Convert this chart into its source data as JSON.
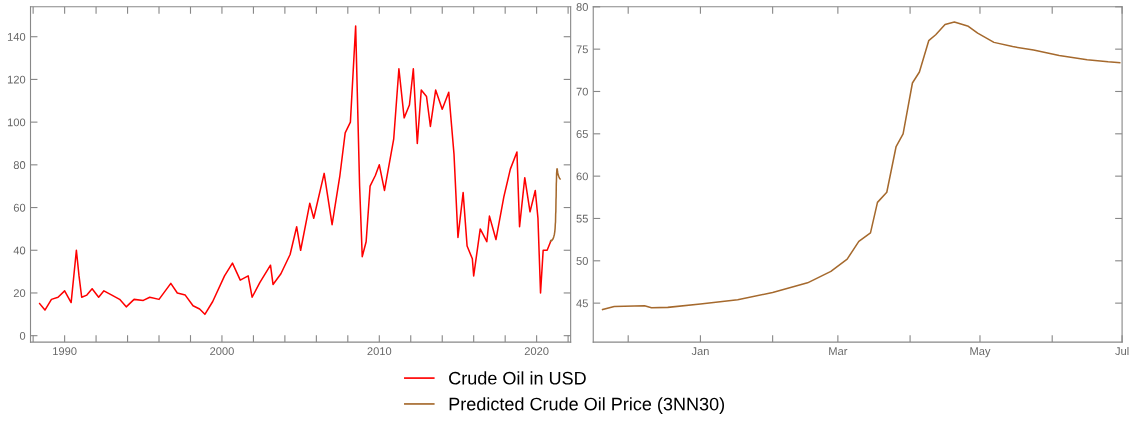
{
  "chart_data": [
    {
      "type": "line",
      "legend": "bottom",
      "grid": false,
      "xlim": [
        "1987-11",
        "2022-03"
      ],
      "ylim": [
        -3,
        154
      ],
      "xticks": [
        {
          "value": "1988",
          "label": null
        },
        {
          "value": "1990",
          "label": "1990"
        },
        {
          "value": "1992",
          "label": null
        },
        {
          "value": "1994",
          "label": null
        },
        {
          "value": "1996",
          "label": null
        },
        {
          "value": "1998",
          "label": null
        },
        {
          "value": "2000",
          "label": "2000"
        },
        {
          "value": "2002",
          "label": null
        },
        {
          "value": "2004",
          "label": null
        },
        {
          "value": "2006",
          "label": null
        },
        {
          "value": "2008",
          "label": null
        },
        {
          "value": "2010",
          "label": "2010"
        },
        {
          "value": "2012",
          "label": null
        },
        {
          "value": "2014",
          "label": null
        },
        {
          "value": "2016",
          "label": null
        },
        {
          "value": "2018",
          "label": null
        },
        {
          "value": "2020",
          "label": "2020"
        },
        {
          "value": "2022",
          "label": null
        }
      ],
      "yticks": [
        0,
        20,
        40,
        60,
        80,
        100,
        120,
        140
      ],
      "series": [
        {
          "name": "Crude Oil in USD",
          "color": "#ff0000",
          "x": [
            "1988-06",
            "1988-10",
            "1989-03",
            "1989-08",
            "1990-01",
            "1990-06",
            "1990-10",
            "1990-12",
            "1991-02",
            "1991-06",
            "1991-10",
            "1992-03",
            "1992-07",
            "1993-01",
            "1993-07",
            "1993-12",
            "1994-06",
            "1995-01",
            "1995-06",
            "1996-01",
            "1996-10",
            "1997-03",
            "1997-09",
            "1998-03",
            "1998-08",
            "1998-12",
            "1999-06",
            "2000-03",
            "2000-09",
            "2001-03",
            "2001-09",
            "2001-12",
            "2002-06",
            "2003-02",
            "2003-04",
            "2003-10",
            "2004-05",
            "2004-10",
            "2005-01",
            "2005-08",
            "2005-11",
            "2006-07",
            "2007-01",
            "2007-07",
            "2007-11",
            "2008-03",
            "2008-07",
            "2008-10",
            "2008-12",
            "2009-03",
            "2009-06",
            "2009-10",
            "2010-01",
            "2010-05",
            "2010-12",
            "2011-04",
            "2011-08",
            "2011-12",
            "2012-03",
            "2012-06",
            "2012-09",
            "2013-01",
            "2013-04",
            "2013-08",
            "2014-01",
            "2014-06",
            "2014-10",
            "2015-01",
            "2015-05",
            "2015-08",
            "2015-12",
            "2016-01",
            "2016-06",
            "2016-11",
            "2017-01",
            "2017-06",
            "2017-12",
            "2018-05",
            "2018-10",
            "2018-12",
            "2019-04",
            "2019-08",
            "2019-12",
            "2020-02",
            "2020-04",
            "2020-06",
            "2020-09",
            "2020-11-20"
          ],
          "values": [
            15,
            12,
            17,
            18,
            21,
            15.5,
            40,
            28,
            18,
            19,
            22,
            18,
            21,
            19,
            17,
            13.5,
            17,
            16.5,
            18,
            17,
            24.5,
            20,
            19,
            14,
            12.5,
            10,
            16,
            28,
            34,
            26,
            28,
            18,
            25,
            33,
            24,
            29,
            38,
            51,
            40,
            62,
            55,
            76,
            52,
            75,
            95,
            100,
            145,
            70,
            37,
            44,
            70,
            75,
            80,
            68,
            92,
            125,
            102,
            108,
            125,
            90,
            115,
            112,
            98,
            115,
            106,
            114,
            85,
            46,
            67,
            42,
            36,
            28,
            50,
            44,
            56,
            45,
            65,
            78,
            86,
            51,
            74,
            58,
            68,
            55,
            20,
            40,
            40,
            44
          ]
        },
        {
          "name": "Predicted Crude Oil Price (3NN30)",
          "color": "#a5692d",
          "x": [
            "2020-11-20",
            "2020-11-25",
            "2020-12-08",
            "2020-12-11",
            "2020-12-18",
            "2021-01-01",
            "2021-01-17",
            "2021-02-01",
            "2021-02-16",
            "2021-02-26",
            "2021-03-05",
            "2021-03-10",
            "2021-03-15",
            "2021-03-18",
            "2021-03-22",
            "2021-03-26",
            "2021-03-29",
            "2021-04-02",
            "2021-04-05",
            "2021-04-09",
            "2021-04-12",
            "2021-04-16",
            "2021-04-20",
            "2021-04-26",
            "2021-04-30",
            "2021-05-07",
            "2021-05-15",
            "2021-05-24",
            "2021-06-04",
            "2021-06-16",
            "2021-06-25",
            "2021-06-30"
          ],
          "values": [
            44.25,
            44.6,
            44.7,
            44.45,
            44.5,
            44.9,
            45.4,
            46.25,
            47.4,
            48.75,
            50.2,
            52.3,
            53.3,
            56.9,
            58.1,
            63.5,
            65,
            71,
            72.3,
            76,
            76.7,
            77.9,
            78.2,
            77.7,
            76.9,
            75.8,
            75.3,
            74.9,
            74.25,
            73.75,
            73.5,
            73.4
          ]
        }
      ]
    },
    {
      "type": "line",
      "grid": false,
      "xlim": [
        "2020-11-16",
        "2021-07-01"
      ],
      "ylim": [
        40.4,
        80
      ],
      "xticks": [
        {
          "value": "2020-12-01",
          "label": null
        },
        {
          "value": "2021-01-01",
          "label": "Jan"
        },
        {
          "value": "2021-02-01",
          "label": null
        },
        {
          "value": "2021-03-01",
          "label": "Mar"
        },
        {
          "value": "2021-04-01",
          "label": null
        },
        {
          "value": "2021-05-01",
          "label": "May"
        },
        {
          "value": "2021-06-01",
          "label": null
        },
        {
          "value": "2021-07-01",
          "label": "Jul"
        }
      ],
      "yticks": [
        45,
        50,
        55,
        60,
        65,
        70,
        75,
        80
      ],
      "series": [
        {
          "color": "#a5692d",
          "x": [
            "2020-11-20",
            "2020-11-25",
            "2020-12-08",
            "2020-12-11",
            "2020-12-18",
            "2021-01-01",
            "2021-01-17",
            "2021-02-01",
            "2021-02-16",
            "2021-02-26",
            "2021-03-05",
            "2021-03-10",
            "2021-03-15",
            "2021-03-18",
            "2021-03-22",
            "2021-03-26",
            "2021-03-29",
            "2021-04-02",
            "2021-04-05",
            "2021-04-09",
            "2021-04-12",
            "2021-04-16",
            "2021-04-20",
            "2021-04-26",
            "2021-04-30",
            "2021-05-07",
            "2021-05-15",
            "2021-05-24",
            "2021-06-04",
            "2021-06-16",
            "2021-06-25",
            "2021-06-30"
          ],
          "values": [
            44.25,
            44.6,
            44.7,
            44.45,
            44.5,
            44.9,
            45.4,
            46.25,
            47.4,
            48.75,
            50.2,
            52.3,
            53.3,
            56.9,
            58.1,
            63.5,
            65,
            71,
            72.3,
            76,
            76.7,
            77.9,
            78.2,
            77.7,
            76.9,
            75.8,
            75.3,
            74.9,
            74.25,
            73.75,
            73.5,
            73.4
          ]
        }
      ]
    }
  ]
}
